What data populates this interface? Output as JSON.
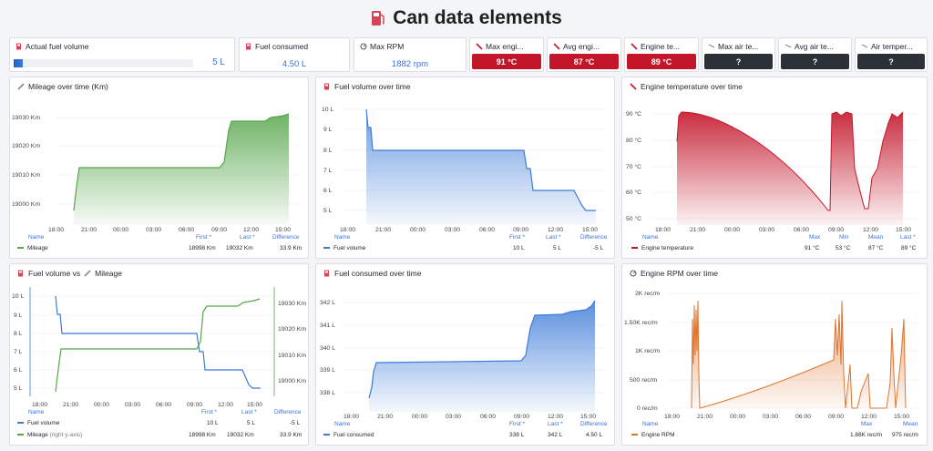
{
  "page": {
    "title": "Can data elements"
  },
  "stats": {
    "actual_fuel": {
      "label": "Actual fuel volume",
      "value": "5 L",
      "fill_fraction": 0.05
    },
    "fuel_consumed": {
      "label": "Fuel consumed",
      "value": "4.50 L"
    },
    "max_rpm": {
      "label": "Max RPM",
      "value": "1882 rpm"
    },
    "max_engine": {
      "label": "Max engi...",
      "value": "91 °C",
      "color": "#c4162a"
    },
    "avg_engine": {
      "label": "Avg engi...",
      "value": "87 °C",
      "color": "#c4162a"
    },
    "engine_temp": {
      "label": "Engine te...",
      "value": "89 °C",
      "color": "#c4162a"
    },
    "max_air": {
      "label": "Max air te...",
      "value": "?",
      "color": "#2c3037"
    },
    "avg_air": {
      "label": "Avg air te...",
      "value": "?",
      "color": "#2c3037"
    },
    "air_temp": {
      "label": "Air temper...",
      "value": "?",
      "color": "#2c3037"
    }
  },
  "x_ticks": [
    "18:00",
    "21:00",
    "00:00",
    "03:00",
    "06:00",
    "09:00",
    "12:00",
    "15:00"
  ],
  "panels": {
    "mileage": {
      "title": "Mileage over time (Km)",
      "y_ticks": [
        "19030 Km",
        "19020 Km",
        "19010 Km",
        "19000 Km"
      ],
      "legend_headers": {
        "name": "Name",
        "first": "First *",
        "last": "Last *",
        "diff": "Difference"
      },
      "legend_row": {
        "name": "Mileage",
        "first": "18998 Km",
        "last": "19032 Km",
        "diff": "33.9 Km"
      }
    },
    "fuel_volume": {
      "title": "Fuel volume over time",
      "y_ticks": [
        "10 L",
        "9 L",
        "8 L",
        "7 L",
        "6 L",
        "5 L"
      ],
      "legend_headers": {
        "name": "Name",
        "first": "First *",
        "last": "Last *",
        "diff": "Difference"
      },
      "legend_row": {
        "name": "Fuel volume",
        "first": "10 L",
        "last": "5 L",
        "diff": "-5 L"
      }
    },
    "engine_temp": {
      "title": "Engine temperature over time",
      "y_ticks": [
        "90 °C",
        "80 °C",
        "70 °C",
        "60 °C",
        "50 °C"
      ],
      "legend_headers": {
        "name": "Name",
        "max": "Max",
        "min": "Min",
        "mean": "Mean",
        "last": "Last *"
      },
      "legend_row": {
        "name": "Engine temperature",
        "max": "91 °C",
        "min": "53 °C",
        "mean": "87 °C",
        "last": "89 °C"
      }
    },
    "fuel_vs_mileage": {
      "title_a": "Fuel volume vs",
      "title_b": "Mileage",
      "y_ticks_left": [
        "10 L",
        "9 L",
        "8 L",
        "7 L",
        "6 L",
        "5 L"
      ],
      "y_ticks_right": [
        "19030 Km",
        "19020 Km",
        "19010 Km",
        "19000 Km"
      ],
      "legend_headers": {
        "name": "Name",
        "first": "First *",
        "last": "Last *",
        "diff": "Difference"
      },
      "legend_rows": [
        {
          "name": "Fuel volume",
          "first": "10 L",
          "last": "5 L",
          "diff": "-5 L"
        },
        {
          "name": "Mileage",
          "suffix": "(right y-axis)",
          "first": "18998 Km",
          "last": "19032 Km",
          "diff": "33.9 Km"
        }
      ]
    },
    "fuel_consumed": {
      "title": "Fuel consumed over time",
      "y_ticks": [
        "342 L",
        "341 L",
        "340 L",
        "339 L",
        "338 L"
      ],
      "legend_headers": {
        "name": "Name",
        "first": "First *",
        "last": "Last *",
        "diff": "Difference"
      },
      "legend_row": {
        "name": "Fuel consumed",
        "first": "338 L",
        "last": "342 L",
        "diff": "4.50 L"
      }
    },
    "engine_rpm": {
      "title": "Engine RPM over time",
      "y_ticks": [
        "2K rec/m",
        "1.50K rec/m",
        "1K rec/m",
        "500 rec/m",
        "0 rec/m"
      ],
      "legend_headers": {
        "name": "Name",
        "max": "Max",
        "mean": "Mean"
      },
      "legend_row": {
        "name": "Engine RPM",
        "max": "1.88K rec/m",
        "mean": "975 rec/m"
      }
    }
  },
  "colors": {
    "green": "#56a64b",
    "blue": "#3d7bd9",
    "red": "#c4162a",
    "orange": "#e0752d",
    "header_blue": "#3871dc"
  }
}
